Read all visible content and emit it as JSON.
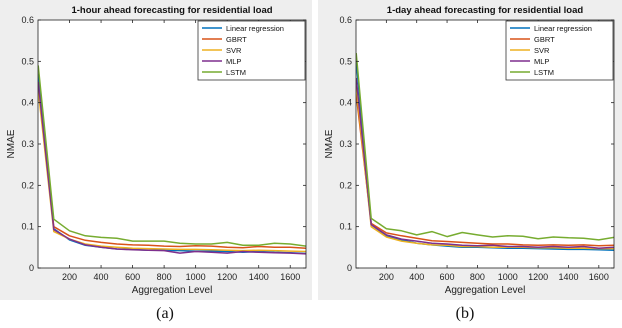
{
  "chart_data": [
    {
      "type": "line",
      "title": "1-hour ahead forecasting for residential load",
      "xlabel": "Aggregation Level",
      "ylabel": "NMAE",
      "caption": "(a)",
      "xlim": [
        0,
        1700
      ],
      "ylim": [
        0,
        0.6
      ],
      "xticks": [
        200,
        400,
        600,
        800,
        1000,
        1200,
        1400,
        1600
      ],
      "yticks": [
        0,
        0.1,
        0.2,
        0.3,
        0.4,
        0.5,
        0.6
      ],
      "grid": false,
      "legend_position": "top-right",
      "x": [
        1,
        100,
        200,
        300,
        400,
        500,
        600,
        700,
        800,
        900,
        1000,
        1100,
        1200,
        1300,
        1400,
        1500,
        1600,
        1700
      ],
      "series": [
        {
          "name": "Linear regression",
          "color": "#0072BD",
          "values": [
            0.47,
            0.095,
            0.068,
            0.055,
            0.05,
            0.046,
            0.045,
            0.043,
            0.043,
            0.042,
            0.041,
            0.041,
            0.04,
            0.038,
            0.04,
            0.038,
            0.037,
            0.035
          ]
        },
        {
          "name": "GBRT",
          "color": "#D95319",
          "values": [
            0.44,
            0.1,
            0.078,
            0.067,
            0.062,
            0.058,
            0.056,
            0.055,
            0.053,
            0.052,
            0.054,
            0.053,
            0.05,
            0.049,
            0.052,
            0.05,
            0.05,
            0.048
          ]
        },
        {
          "name": "SVR",
          "color": "#EDB120",
          "values": [
            0.43,
            0.088,
            0.07,
            0.058,
            0.053,
            0.05,
            0.048,
            0.047,
            0.046,
            0.045,
            0.045,
            0.044,
            0.043,
            0.042,
            0.043,
            0.042,
            0.041,
            0.04
          ]
        },
        {
          "name": "MLP",
          "color": "#7E2F8E",
          "values": [
            0.45,
            0.093,
            0.07,
            0.056,
            0.05,
            0.046,
            0.044,
            0.043,
            0.042,
            0.036,
            0.04,
            0.038,
            0.036,
            0.04,
            0.038,
            0.037,
            0.036,
            0.034
          ]
        },
        {
          "name": "LSTM",
          "color": "#77AC30",
          "values": [
            0.49,
            0.118,
            0.09,
            0.078,
            0.074,
            0.072,
            0.065,
            0.065,
            0.065,
            0.06,
            0.058,
            0.058,
            0.062,
            0.055,
            0.055,
            0.06,
            0.058,
            0.053
          ]
        }
      ]
    },
    {
      "type": "line",
      "title": "1-day ahead forecasting for residential load",
      "xlabel": "Aggregation Level",
      "ylabel": "NMAE",
      "caption": "(b)",
      "xlim": [
        0,
        1700
      ],
      "ylim": [
        0,
        0.6
      ],
      "xticks": [
        200,
        400,
        600,
        800,
        1000,
        1200,
        1400,
        1600
      ],
      "yticks": [
        0,
        0.1,
        0.2,
        0.3,
        0.4,
        0.5,
        0.6
      ],
      "grid": false,
      "legend_position": "top-right",
      "x": [
        1,
        100,
        200,
        300,
        400,
        500,
        600,
        700,
        800,
        900,
        1000,
        1100,
        1200,
        1300,
        1400,
        1500,
        1600,
        1700
      ],
      "series": [
        {
          "name": "Linear regression",
          "color": "#0072BD",
          "values": [
            0.5,
            0.105,
            0.078,
            0.068,
            0.06,
            0.056,
            0.053,
            0.05,
            0.05,
            0.049,
            0.048,
            0.048,
            0.047,
            0.046,
            0.045,
            0.045,
            0.044,
            0.043
          ]
        },
        {
          "name": "GBRT",
          "color": "#D95319",
          "values": [
            0.42,
            0.108,
            0.085,
            0.078,
            0.072,
            0.066,
            0.064,
            0.062,
            0.06,
            0.058,
            0.058,
            0.056,
            0.055,
            0.056,
            0.055,
            0.056,
            0.054,
            0.055
          ]
        },
        {
          "name": "SVR",
          "color": "#EDB120",
          "values": [
            0.44,
            0.1,
            0.075,
            0.065,
            0.06,
            0.056,
            0.055,
            0.052,
            0.052,
            0.05,
            0.05,
            0.05,
            0.049,
            0.049,
            0.048,
            0.048,
            0.047,
            0.047
          ]
        },
        {
          "name": "MLP",
          "color": "#7E2F8E",
          "values": [
            0.46,
            0.105,
            0.08,
            0.07,
            0.065,
            0.06,
            0.058,
            0.055,
            0.054,
            0.055,
            0.052,
            0.052,
            0.05,
            0.052,
            0.05,
            0.052,
            0.048,
            0.05
          ]
        },
        {
          "name": "LSTM",
          "color": "#77AC30",
          "values": [
            0.52,
            0.12,
            0.095,
            0.09,
            0.08,
            0.088,
            0.076,
            0.086,
            0.08,
            0.075,
            0.078,
            0.077,
            0.071,
            0.075,
            0.073,
            0.072,
            0.068,
            0.074
          ]
        }
      ]
    }
  ]
}
